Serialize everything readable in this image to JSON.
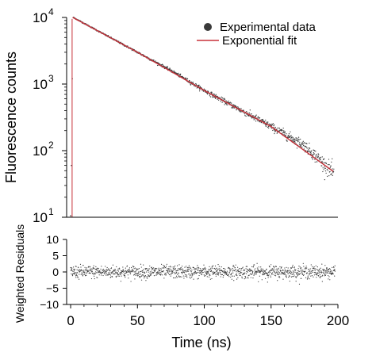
{
  "chart_data": [
    {
      "type": "scatter",
      "panel": "decay",
      "xlabel": "",
      "ylabel": "Fluorescence counts",
      "xlim": [
        -3,
        200
      ],
      "ylim": [
        10,
        10000
      ],
      "yscale": "log",
      "ytick_labels": [
        {
          "base": "10",
          "exp": "1",
          "value": 10
        },
        {
          "base": "10",
          "exp": "2",
          "value": 100
        },
        {
          "base": "10",
          "exp": "3",
          "value": 1000
        },
        {
          "base": "10",
          "exp": "4",
          "value": 10000
        }
      ],
      "legend": {
        "placement": "top-right",
        "entries": [
          {
            "label": "Experimental data",
            "marker": "dot",
            "color": "#3a3a3a"
          },
          {
            "label": "Exponential fit",
            "marker": "line",
            "color": "#c8323a"
          }
        ]
      },
      "series": [
        {
          "name": "Experimental data",
          "color": "#3a3a3a",
          "peak": {
            "x": 2,
            "y": 10000
          },
          "decay_points": [
            {
              "x": 2,
              "y": 10000
            },
            {
              "x": 25,
              "y": 5600
            },
            {
              "x": 50,
              "y": 3000
            },
            {
              "x": 75,
              "y": 1600
            },
            {
              "x": 100,
              "y": 800
            },
            {
              "x": 125,
              "y": 430
            },
            {
              "x": 150,
              "y": 230
            },
            {
              "x": 175,
              "y": 120
            },
            {
              "x": 197,
              "y": 45
            }
          ]
        },
        {
          "name": "Exponential fit",
          "color": "#c8323a",
          "points": [
            {
              "x": 1.5,
              "y": 10000
            },
            {
              "x": 25,
              "y": 5600
            },
            {
              "x": 50,
              "y": 3000
            },
            {
              "x": 100,
              "y": 800
            },
            {
              "x": 150,
              "y": 230
            },
            {
              "x": 197,
              "y": 48
            }
          ]
        }
      ]
    },
    {
      "type": "scatter",
      "panel": "residuals",
      "xlabel": "Time (ns)",
      "ylabel": "Weighted Residuals",
      "xlim": [
        -3,
        200
      ],
      "ylim": [
        -10,
        10
      ],
      "x_ticks": [
        0,
        50,
        100,
        150,
        200
      ],
      "y_ticks": [
        -10,
        -5,
        0,
        5,
        10
      ],
      "series": [
        {
          "name": "",
          "color": "#3a3a3a",
          "x_range": [
            0,
            198
          ],
          "mean": 0,
          "spread": 2
        }
      ]
    }
  ]
}
